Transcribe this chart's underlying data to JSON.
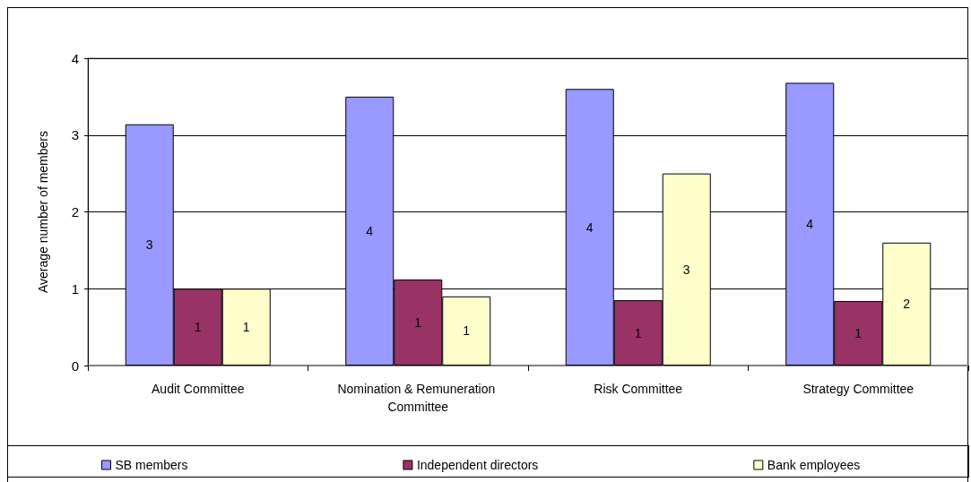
{
  "chart_data": {
    "type": "bar",
    "ylabel": "Average number of members",
    "categories": [
      "Audit Committee",
      "Nomination & Remuneration Committee",
      "Risk Committee",
      "Strategy Committee"
    ],
    "series": [
      {
        "name": "SB members",
        "color": "#9999ff",
        "values": [
          3.14,
          3.5,
          3.6,
          3.68
        ],
        "value_labels": [
          "3",
          "4",
          "4",
          "4"
        ]
      },
      {
        "name": "Independent directors",
        "color": "#993366",
        "values": [
          1.0,
          1.12,
          0.85,
          0.84
        ],
        "value_labels": [
          "1",
          "1",
          "1",
          "1"
        ]
      },
      {
        "name": "Bank employees",
        "color": "#ffffcc",
        "values": [
          1.0,
          0.9,
          2.5,
          1.6
        ],
        "value_labels": [
          "1",
          "1",
          "3",
          "2"
        ]
      }
    ],
    "ylim": [
      0,
      4
    ],
    "yticks": [
      0,
      1,
      2,
      3,
      4
    ],
    "grid": "y",
    "legend": "bottom"
  }
}
